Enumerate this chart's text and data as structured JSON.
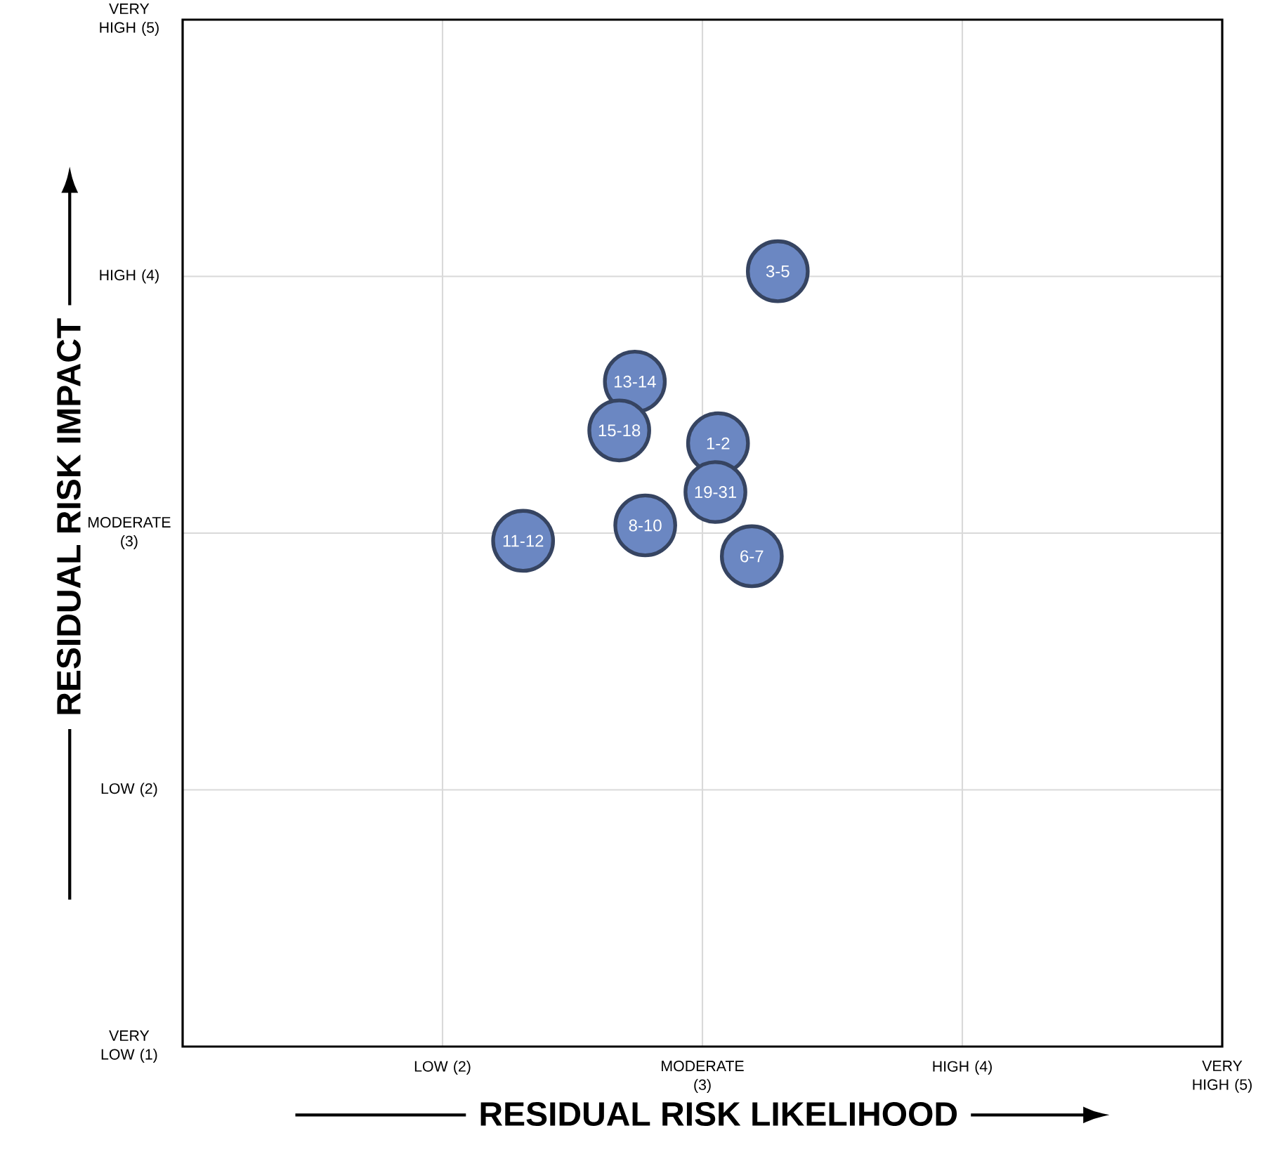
{
  "chart_data": {
    "type": "scatter",
    "xlabel": "RESIDUAL RISK LIKELIHOOD",
    "ylabel": "RESIDUAL RISK IMPACT",
    "marker": "circle",
    "grid": true,
    "x": [
      3.29,
      2.74,
      2.68,
      3.06,
      3.05,
      2.78,
      2.31,
      3.19
    ],
    "values": [
      4.02,
      3.59,
      3.4,
      3.35,
      3.16,
      3.03,
      2.97,
      2.91
    ],
    "color": "#6b87c2",
    "xlim": [
      1,
      5
    ],
    "ylim": [
      1,
      5
    ],
    "xticks": [
      {
        "value": 2,
        "label": "LOW (2)"
      },
      {
        "value": 3,
        "label": "MODERATE (3)"
      },
      {
        "value": 4,
        "label": "HIGH (4)"
      },
      {
        "value": 5,
        "label": "VERY HIGH (5)"
      }
    ],
    "yticks": [
      {
        "value": 1,
        "label": "VERY LOW (1)"
      },
      {
        "value": 2,
        "label": "LOW (2)"
      },
      {
        "value": 3,
        "label": "MODERATE (3)"
      },
      {
        "value": 4,
        "label": "HIGH (4)"
      },
      {
        "value": 5,
        "label": "VERY HIGH (5)"
      }
    ],
    "annotations": [
      {
        "text": "3-5",
        "x": 3.29,
        "y": 4.02
      },
      {
        "text": "13-14",
        "x": 2.74,
        "y": 3.59
      },
      {
        "text": "15-18",
        "x": 2.68,
        "y": 3.4
      },
      {
        "text": "1-2",
        "x": 3.06,
        "y": 3.35
      },
      {
        "text": "19-31",
        "x": 3.05,
        "y": 3.16
      },
      {
        "text": "8-10",
        "x": 2.78,
        "y": 3.03
      },
      {
        "text": "11-12",
        "x": 2.31,
        "y": 2.97
      },
      {
        "text": "6-7",
        "x": 3.19,
        "y": 2.91
      }
    ]
  }
}
